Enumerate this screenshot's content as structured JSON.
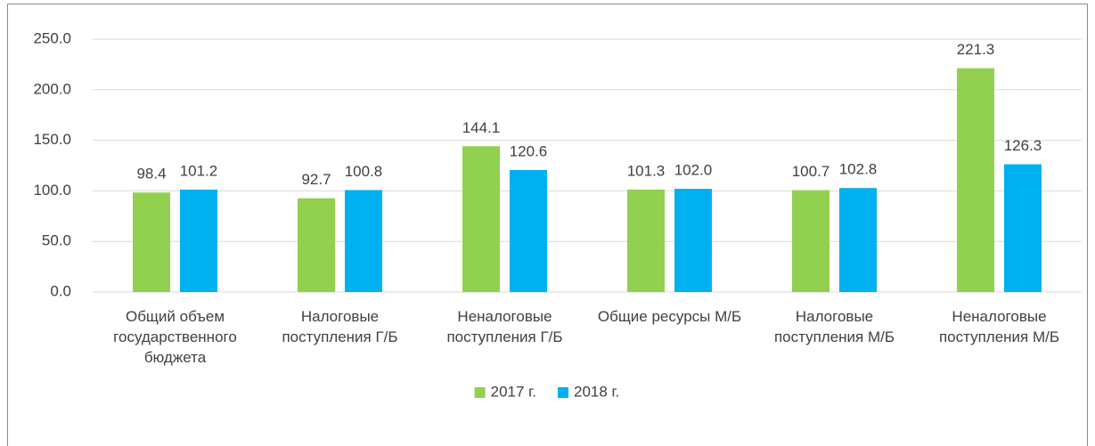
{
  "chart_data": {
    "type": "bar",
    "categories": [
      "Общий объем государственного бюджета",
      "Налоговые поступления Г/Б",
      "Неналоговые поступления Г/Б",
      "Общие ресурсы М/Б",
      "Налоговые поступления М/Б",
      "Неналоговые поступления М/Б"
    ],
    "series": [
      {
        "name": "2017 г.",
        "color": "#92d050",
        "values": [
          98.4,
          92.7,
          144.1,
          101.3,
          100.7,
          221.3
        ],
        "value_labels": [
          "98.4",
          "92.7",
          "144.1",
          "101.3",
          "100.7",
          "221.3"
        ]
      },
      {
        "name": "2018 г.",
        "color": "#00b0f0",
        "values": [
          101.2,
          100.8,
          120.6,
          102.0,
          102.8,
          126.3
        ],
        "value_labels": [
          "101.2",
          "100.8",
          "120.6",
          "102.0",
          "102.8",
          "126.3"
        ]
      }
    ],
    "ylim": [
      0,
      250
    ],
    "yticks": [
      {
        "value": 0,
        "label": "0.0"
      },
      {
        "value": 50,
        "label": "50.0"
      },
      {
        "value": 100,
        "label": "100.0"
      },
      {
        "value": 150,
        "label": "150.0"
      },
      {
        "value": 200,
        "label": "200.0"
      },
      {
        "value": 250,
        "label": "250.0"
      }
    ],
    "grid": true,
    "legend": "bottom"
  }
}
